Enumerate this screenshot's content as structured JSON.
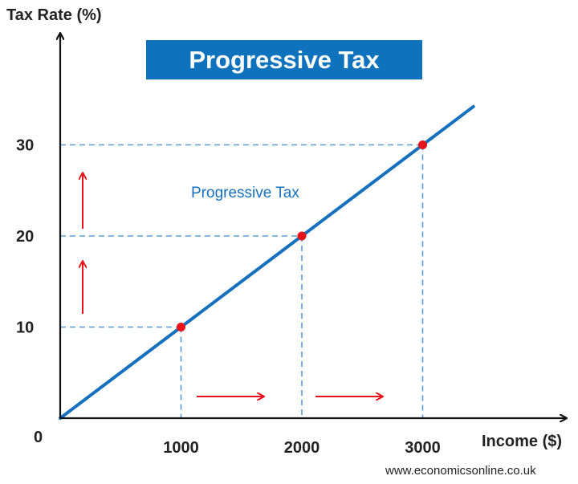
{
  "chart_data": {
    "type": "line",
    "title": "Progressive Tax",
    "xlabel": "Income ($)",
    "ylabel": "Tax Rate (%)",
    "origin_label": "0",
    "xlim": [
      0,
      3420
    ],
    "ylim": [
      0,
      40
    ],
    "x_ticks": [
      1000,
      2000,
      3000
    ],
    "x_tick_labels": [
      "1000",
      "2000",
      "3000"
    ],
    "y_ticks": [
      10,
      20,
      30
    ],
    "y_tick_labels": [
      "10",
      "20",
      "30"
    ],
    "series": [
      {
        "x": [
          0,
          1000,
          2000,
          3000,
          3420
        ],
        "y": [
          0,
          10,
          20,
          30,
          34.2
        ]
      }
    ],
    "highlighted_points": [
      {
        "x": 1000,
        "y": 10
      },
      {
        "x": 2000,
        "y": 20
      },
      {
        "x": 3000,
        "y": 30
      }
    ],
    "line_label": "Progressive Tax",
    "grid": false,
    "colors": {
      "line": "#1570bd",
      "guides": "#5b9bd5",
      "points": "#e8141b",
      "arrows": "#e8141b",
      "axes": "#111111",
      "title_bg": "#0e72bd",
      "title_text": "#ffffff"
    }
  },
  "source": "www.economicsonline.co.uk"
}
